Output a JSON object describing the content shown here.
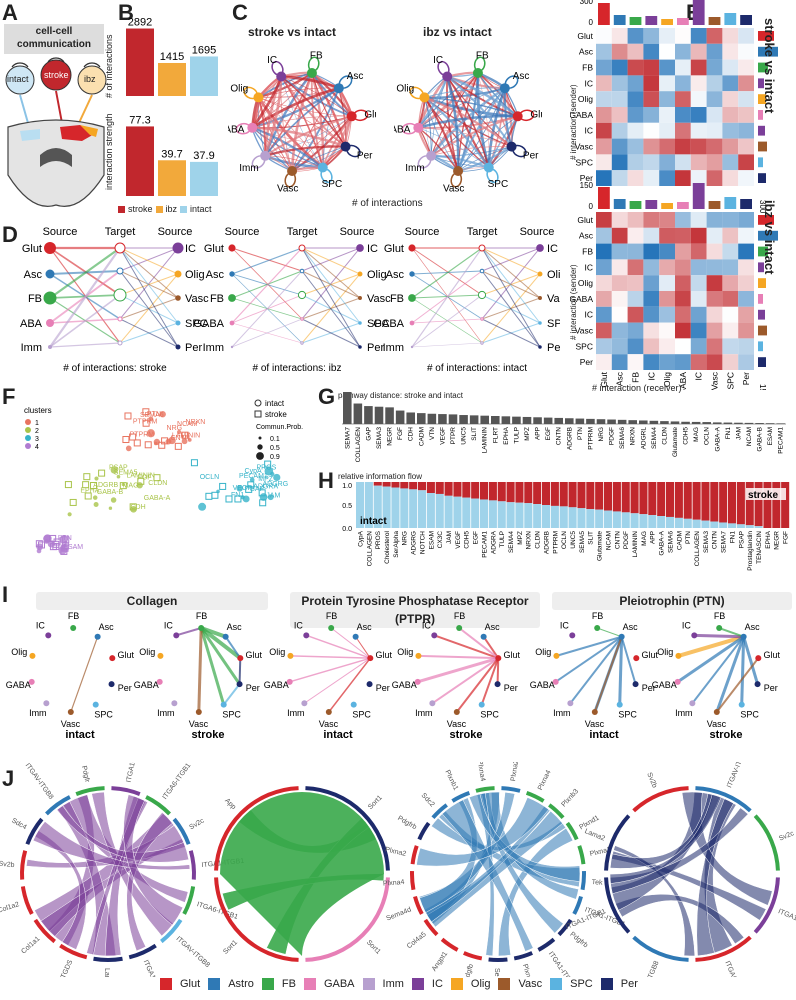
{
  "panel_letters": [
    "A",
    "B",
    "C",
    "D",
    "E",
    "F",
    "G",
    "H",
    "I",
    "J"
  ],
  "cell_types": [
    "Glut",
    "Asc",
    "FB",
    "Olig",
    "GABA",
    "IC",
    "Vasc",
    "SPC",
    "Per",
    "Imm"
  ],
  "colors": {
    "Glut": "#d6262b",
    "Asc": "#2f79b5",
    "FB": "#39a84a",
    "GABA": "#e77fb6",
    "Imm": "#b7a0cf",
    "IC": "#7b3f99",
    "Olig": "#f5a623",
    "Vasc": "#9c5a2b",
    "SPC": "#5bb3e0",
    "Per": "#1d2a6b",
    "stroke": "#c1272d",
    "ibz": "#f2a93b",
    "intact": "#9fd3ea"
  },
  "panelA": {
    "title": "cell-cell communication",
    "labels": [
      "intact",
      "stroke",
      "ibz"
    ]
  },
  "panelB": {
    "ylabel_top": "# of interactions",
    "ylabel_bottom": "interaction strength",
    "legend": [
      "stroke",
      "ibz",
      "intact"
    ],
    "chart_data": [
      {
        "type": "bar",
        "categories": [
          "stroke",
          "ibz",
          "intact"
        ],
        "values": [
          2892,
          1415,
          1695
        ],
        "ylabel": "# of interactions"
      },
      {
        "type": "bar",
        "categories": [
          "stroke",
          "ibz",
          "intact"
        ],
        "values": [
          77.3,
          39.7,
          37.9
        ],
        "ylabel": "interaction strength"
      }
    ],
    "value_labels_top": [
      "2892",
      "1415",
      "1695"
    ],
    "value_labels_bottom": [
      "77.3",
      "39.7",
      "37.9"
    ]
  },
  "panelC": {
    "titles": [
      "stroke vs intact",
      "ibz vs intact"
    ],
    "xlabel": "# of interactions",
    "nodes": [
      "FB",
      "IC",
      "Asc",
      "Olig",
      "GABA",
      "Glut",
      "Imm",
      "Per",
      "Vasc",
      "SPC"
    ]
  },
  "panelD": {
    "source": "Source",
    "target": "Target",
    "left": [
      "Glut",
      "Asc",
      "FB",
      "GABA",
      "Imm"
    ],
    "right": [
      "IC",
      "Olig",
      "Vasc",
      "SPC",
      "Per"
    ],
    "captions": [
      "# of interactions: stroke",
      "# of interactions: ibz",
      "# of interactions: intact"
    ]
  },
  "panelE": {
    "rows": [
      "Glut",
      "Asc",
      "FB",
      "IC",
      "Olig",
      "GABA",
      "IC",
      "Vasc",
      "SPC",
      "Per"
    ],
    "cols": [
      "Glut",
      "Asc",
      "FB",
      "IC",
      "Olig",
      "GABA",
      "IC",
      "Vasc",
      "SPC",
      "Per"
    ],
    "ylabel": "# interaction (sender)",
    "xlabel": "# interaction (receiver)",
    "side_labels": [
      "stroke vs intact",
      "ibz vs intact"
    ],
    "tick_top1": "300",
    "tick_top2": "150",
    "tick_right1": "300",
    "tick_right2": "150",
    "zero": "0"
  },
  "panelF": {
    "legend_title": "clusters",
    "clusters": [
      "1",
      "2",
      "3",
      "4"
    ],
    "shape_legend": [
      "intact",
      "stroke"
    ],
    "prob_title": "Commun.Prob.",
    "prob_vals": [
      "0.1",
      "0.5",
      "0.9"
    ],
    "words": [
      "NRXN",
      "PTPRM",
      "PTN",
      "PTPRM",
      "CNTN",
      "NRG",
      "LAMININ",
      "NCAM",
      "SEMA6",
      "SEMA5",
      "EPHA",
      "GABA-B",
      "FGF",
      "GABA-A",
      "ADGRB",
      "CDH",
      "LAMININ",
      "PSAP",
      "MAG",
      "CLDN",
      "ADGRA",
      "VEGF",
      "FN1",
      "MPZ",
      "GAP",
      "ADGRG",
      "CypA",
      "PROS",
      "JAM",
      "PECAM1",
      "OCLN",
      "ESAM",
      "PTN",
      "ADGRL",
      "CADM",
      "SEMA3",
      "NEGR",
      "NEGR"
    ]
  },
  "panelG": {
    "title": "pathway distance: stroke and intact",
    "chart_data": {
      "type": "bar",
      "categories": [
        "SEMA7",
        "COLLAGEN",
        "GAP",
        "SEMA3",
        "NEGR",
        "FGF",
        "CDH",
        "CADM",
        "VTN",
        "VEGF",
        "PTPR",
        "UNC5",
        "SLIT",
        "LAMININ",
        "FLRT",
        "EPHA",
        "TULP",
        "MPZ",
        "APP",
        "EGF",
        "CNTN",
        "ADGRB",
        "PTN",
        "PTPRM",
        "NRG",
        "PDGF",
        "SEMA6",
        "NRXN",
        "ADGRL",
        "SEMA4",
        "CLDN",
        "Glutamate",
        "CDH5",
        "MAG",
        "OCLN",
        "GABA-A",
        "FN1",
        "JAM",
        "NCAM",
        "GABA-B",
        "ESAM",
        "PECAM1"
      ],
      "values": [
        1.0,
        0.64,
        0.56,
        0.54,
        0.52,
        0.42,
        0.36,
        0.34,
        0.32,
        0.31,
        0.3,
        0.28,
        0.27,
        0.26,
        0.25,
        0.24,
        0.23,
        0.22,
        0.21,
        0.2,
        0.19,
        0.18,
        0.17,
        0.16,
        0.15,
        0.14,
        0.13,
        0.12,
        0.11,
        0.1,
        0.09,
        0.08,
        0.07,
        0.065,
        0.06,
        0.05,
        0.045,
        0.04,
        0.035,
        0.03,
        0.025,
        0.02
      ]
    }
  },
  "panelH": {
    "ytitle": "relative information flow",
    "ytick_top": "1.0",
    "ytick_mid": "0.5",
    "ytick_bot": "0.0",
    "label_intact": "intact",
    "label_stroke": "stroke",
    "chart_data": {
      "type": "bar",
      "categories": [
        "CypA",
        "COLLAGEN",
        "PROS",
        "Cholesterol",
        "SerAlpha",
        "NRG",
        "ADGRG",
        "NOTCH",
        "ESAM",
        "CX3C",
        "JAM",
        "VEGF",
        "CDH5",
        "EGF",
        "PECAM1",
        "ADGRA",
        "TULP",
        "SEMA4",
        "MPZ",
        "NRXN",
        "CLDN",
        "ADGRB",
        "PTPRM",
        "OCLN",
        "UNC5",
        "SEMA5",
        "SLIT",
        "Glutamate",
        "NCAM",
        "CNTN",
        "PDGF",
        "LAMININ",
        "MAG",
        "APP",
        "GABA-A",
        "SEMA6",
        "CADM",
        "PTN",
        "COLLAGEN",
        "SEMA3",
        "CNTN",
        "SEMA7",
        "FN1",
        "PSAP",
        "Prostaglandin",
        "TENASCIN",
        "EPHA",
        "NEGR",
        "FGF"
      ],
      "stroke": [
        0.0,
        0.0,
        0.08,
        0.1,
        0.12,
        0.14,
        0.16,
        0.18,
        0.24,
        0.26,
        0.3,
        0.32,
        0.34,
        0.36,
        0.38,
        0.4,
        0.42,
        0.44,
        0.45,
        0.46,
        0.48,
        0.5,
        0.52,
        0.53,
        0.55,
        0.57,
        0.59,
        0.6,
        0.62,
        0.64,
        0.66,
        0.68,
        0.7,
        0.72,
        0.74,
        0.76,
        0.78,
        0.8,
        0.82,
        0.84,
        0.86,
        0.88,
        0.9,
        0.92,
        0.94,
        0.96,
        1.0,
        1.0,
        1.0
      ]
    }
  },
  "panelI": {
    "titles": [
      "Collagen",
      "Protein Tyrosine Phosphatase Receptor (PTPR)",
      "Pleiotrophin (PTN)"
    ],
    "labels": [
      "intact",
      "stroke",
      "intact",
      "stroke",
      "intact",
      "stroke"
    ],
    "nodes": [
      "IC",
      "FB",
      "Asc",
      "Olig",
      "GABA",
      "Glut",
      "Imm",
      "Per",
      "Vasc",
      "SPC"
    ]
  },
  "panelJ": {
    "c1": [
      "ITGA1-ITGB1",
      "ITGA6-ITGB1",
      "Sv2c",
      "ITGA1-ITGB1",
      "ITGA6-ITGB1",
      "ITGAV-ITGB8",
      "ITGA1-ITGB1",
      "Lama2",
      "PGD2-PTGDS",
      "Col1a1",
      "Col1a2",
      "Sv2b",
      "Sdc4",
      "ITGAV-ITGB8",
      "Pdgfr"
    ],
    "c2": [
      "Sort1",
      "Sort1",
      "Sort1",
      "App"
    ],
    "c3": [
      "Plxna2",
      "Plxna4",
      "Plxnb3",
      "Plxnd1",
      "Plxna2",
      "Tek",
      "ITGA1-ITGB1",
      "Pdgfrb",
      "ITGA1-ITGB1",
      "Plxna2",
      "Sema5a",
      "Pdgfb",
      "Angpt1",
      "Col4a5",
      "Sema4d",
      "Plxna4",
      "Plxna2",
      "Pdgfrb",
      "Sdc2",
      "Plxnb1",
      "Plxna4"
    ],
    "c4": [
      "ITGAV-ITGB8",
      "Sv2c",
      "ITGA1-ITGB1",
      "ITGA6-ITGB1",
      "ITGAV-ITGB8",
      "ITGA1-ITGB1",
      "Lama2",
      "Sv2b"
    ],
    "legend": [
      "Glut",
      "Astro",
      "FB",
      "GABA",
      "Imm",
      "IC",
      "Olig",
      "Vasc",
      "SPC",
      "Per"
    ]
  }
}
